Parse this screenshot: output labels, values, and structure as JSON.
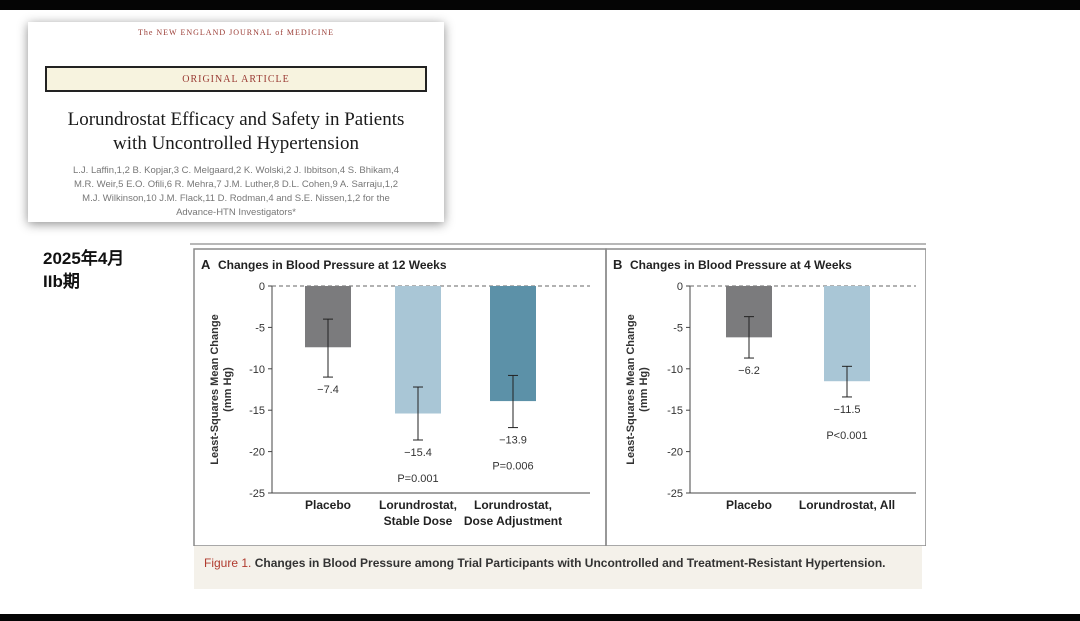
{
  "paper": {
    "journal": "The NEW ENGLAND JOURNAL of MEDICINE",
    "section": "ORIGINAL ARTICLE",
    "title_line1": "Lorundrostat Efficacy and Safety in Patients",
    "title_line2": "with Uncontrolled Hypertension",
    "authors_line1": "L.J. Laffin,1,2 B. Kopjar,3 C. Melgaard,2 K. Wolski,2 J. Ibbitson,4 S. Bhikam,4",
    "authors_line2": "M.R. Weir,5 E.O. Ofili,6 R. Mehra,7 J.M. Luther,8 D.L. Cohen,9 A. Sarraju,1,2",
    "authors_line3": "M.J. Wilkinson,10 J.M. Flack,11 D. Rodman,4 and S.E. Nissen,1,2 for the",
    "authors_line4": "Advance-HTN Investigators*"
  },
  "side_note": {
    "date": "2025年4月",
    "phase": "IIb期"
  },
  "figure": {
    "caption_label": "Figure 1.",
    "caption_text": "Changes in Blood Pressure among Trial Participants with Uncontrolled and Treatment-Resistant Hypertension."
  },
  "chart_data": [
    {
      "type": "bar",
      "panel": "A",
      "title": "Changes in Blood Pressure at 12 Weeks",
      "ylabel": "Least-Squares Mean Change",
      "ylabel_units": "(mm Hg)",
      "ylim": [
        -25,
        0
      ],
      "yticks": [
        0,
        -5,
        -10,
        -15,
        -20,
        -25
      ],
      "ytick_labels": [
        "0",
        "-5",
        "-10",
        "-15",
        "-20",
        "-25"
      ],
      "reference_line": 0,
      "categories": [
        "Placebo",
        "Lorundrostat,\nStable Dose",
        "Lorundrostat,\nDose Adjustment"
      ],
      "values": [
        -7.4,
        -15.4,
        -13.9
      ],
      "value_labels": [
        "−7.4",
        "−15.4",
        "−13.9"
      ],
      "error_low": [
        -11.0,
        -18.6,
        -17.1
      ],
      "error_high": [
        -4.0,
        -12.2,
        -10.8
      ],
      "p_values": [
        "",
        "P=0.001",
        "P=0.006"
      ],
      "colors": [
        "#7b7b7d",
        "#a9c6d6",
        "#5c91a8"
      ]
    },
    {
      "type": "bar",
      "panel": "B",
      "title": "Changes in Blood Pressure at 4 Weeks",
      "ylabel": "Least-Squares Mean Change",
      "ylabel_units": "(mm Hg)",
      "ylim": [
        -25,
        0
      ],
      "yticks": [
        0,
        -5,
        -10,
        -15,
        -20,
        -25
      ],
      "ytick_labels": [
        "0",
        "-5",
        "-10",
        "-15",
        "-20",
        "-25"
      ],
      "reference_line": 0,
      "categories": [
        "Placebo",
        "Lorundrostat, All"
      ],
      "values": [
        -6.2,
        -11.5
      ],
      "value_labels": [
        "−6.2",
        "−11.5"
      ],
      "error_low": [
        -8.7,
        -13.4
      ],
      "error_high": [
        -3.7,
        -9.7
      ],
      "p_values": [
        "",
        "P<0.001"
      ],
      "colors": [
        "#7b7b7d",
        "#a9c6d6"
      ]
    }
  ]
}
